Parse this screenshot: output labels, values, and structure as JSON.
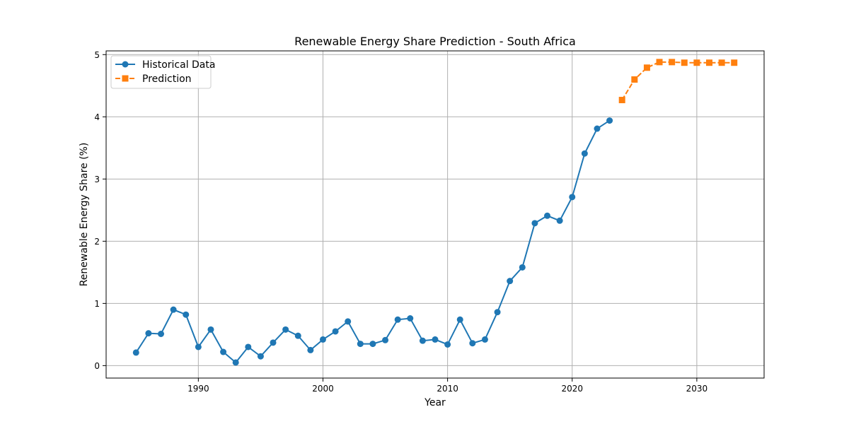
{
  "chart_data": {
    "type": "line",
    "title": "Renewable Energy Share Prediction - South Africa",
    "xlabel": "Year",
    "ylabel": "Renewable Energy Share (%)",
    "xlim": [
      1982.6,
      2035.4
    ],
    "ylim": [
      -0.2,
      5.06
    ],
    "xticks": [
      1990,
      2000,
      2010,
      2020,
      2030
    ],
    "yticks": [
      0,
      1,
      2,
      3,
      4,
      5
    ],
    "grid": true,
    "legend_position": "top-left",
    "series": [
      {
        "name": "Historical Data",
        "color": "#1f77b4",
        "marker": "circle",
        "line_style": "solid",
        "x": [
          1985,
          1986,
          1987,
          1988,
          1989,
          1990,
          1991,
          1992,
          1993,
          1994,
          1995,
          1996,
          1997,
          1998,
          1999,
          2000,
          2001,
          2002,
          2003,
          2004,
          2005,
          2006,
          2007,
          2008,
          2009,
          2010,
          2011,
          2012,
          2013,
          2014,
          2015,
          2016,
          2017,
          2018,
          2019,
          2020,
          2021,
          2022,
          2023
        ],
        "y": [
          0.21,
          0.52,
          0.51,
          0.9,
          0.82,
          0.3,
          0.58,
          0.22,
          0.05,
          0.3,
          0.15,
          0.37,
          0.58,
          0.48,
          0.25,
          0.42,
          0.55,
          0.71,
          0.35,
          0.35,
          0.41,
          0.74,
          0.76,
          0.4,
          0.42,
          0.34,
          0.74,
          0.36,
          0.42,
          0.86,
          1.36,
          1.58,
          2.29,
          2.41,
          2.33,
          2.71,
          3.41,
          3.81,
          3.94
        ]
      },
      {
        "name": "Prediction",
        "color": "#ff7f0e",
        "marker": "square",
        "line_style": "dashed",
        "x": [
          2024,
          2025,
          2026,
          2027,
          2028,
          2029,
          2030,
          2031,
          2032,
          2033
        ],
        "y": [
          4.27,
          4.6,
          4.79,
          4.88,
          4.88,
          4.87,
          4.87,
          4.87,
          4.87,
          4.87
        ]
      }
    ]
  }
}
